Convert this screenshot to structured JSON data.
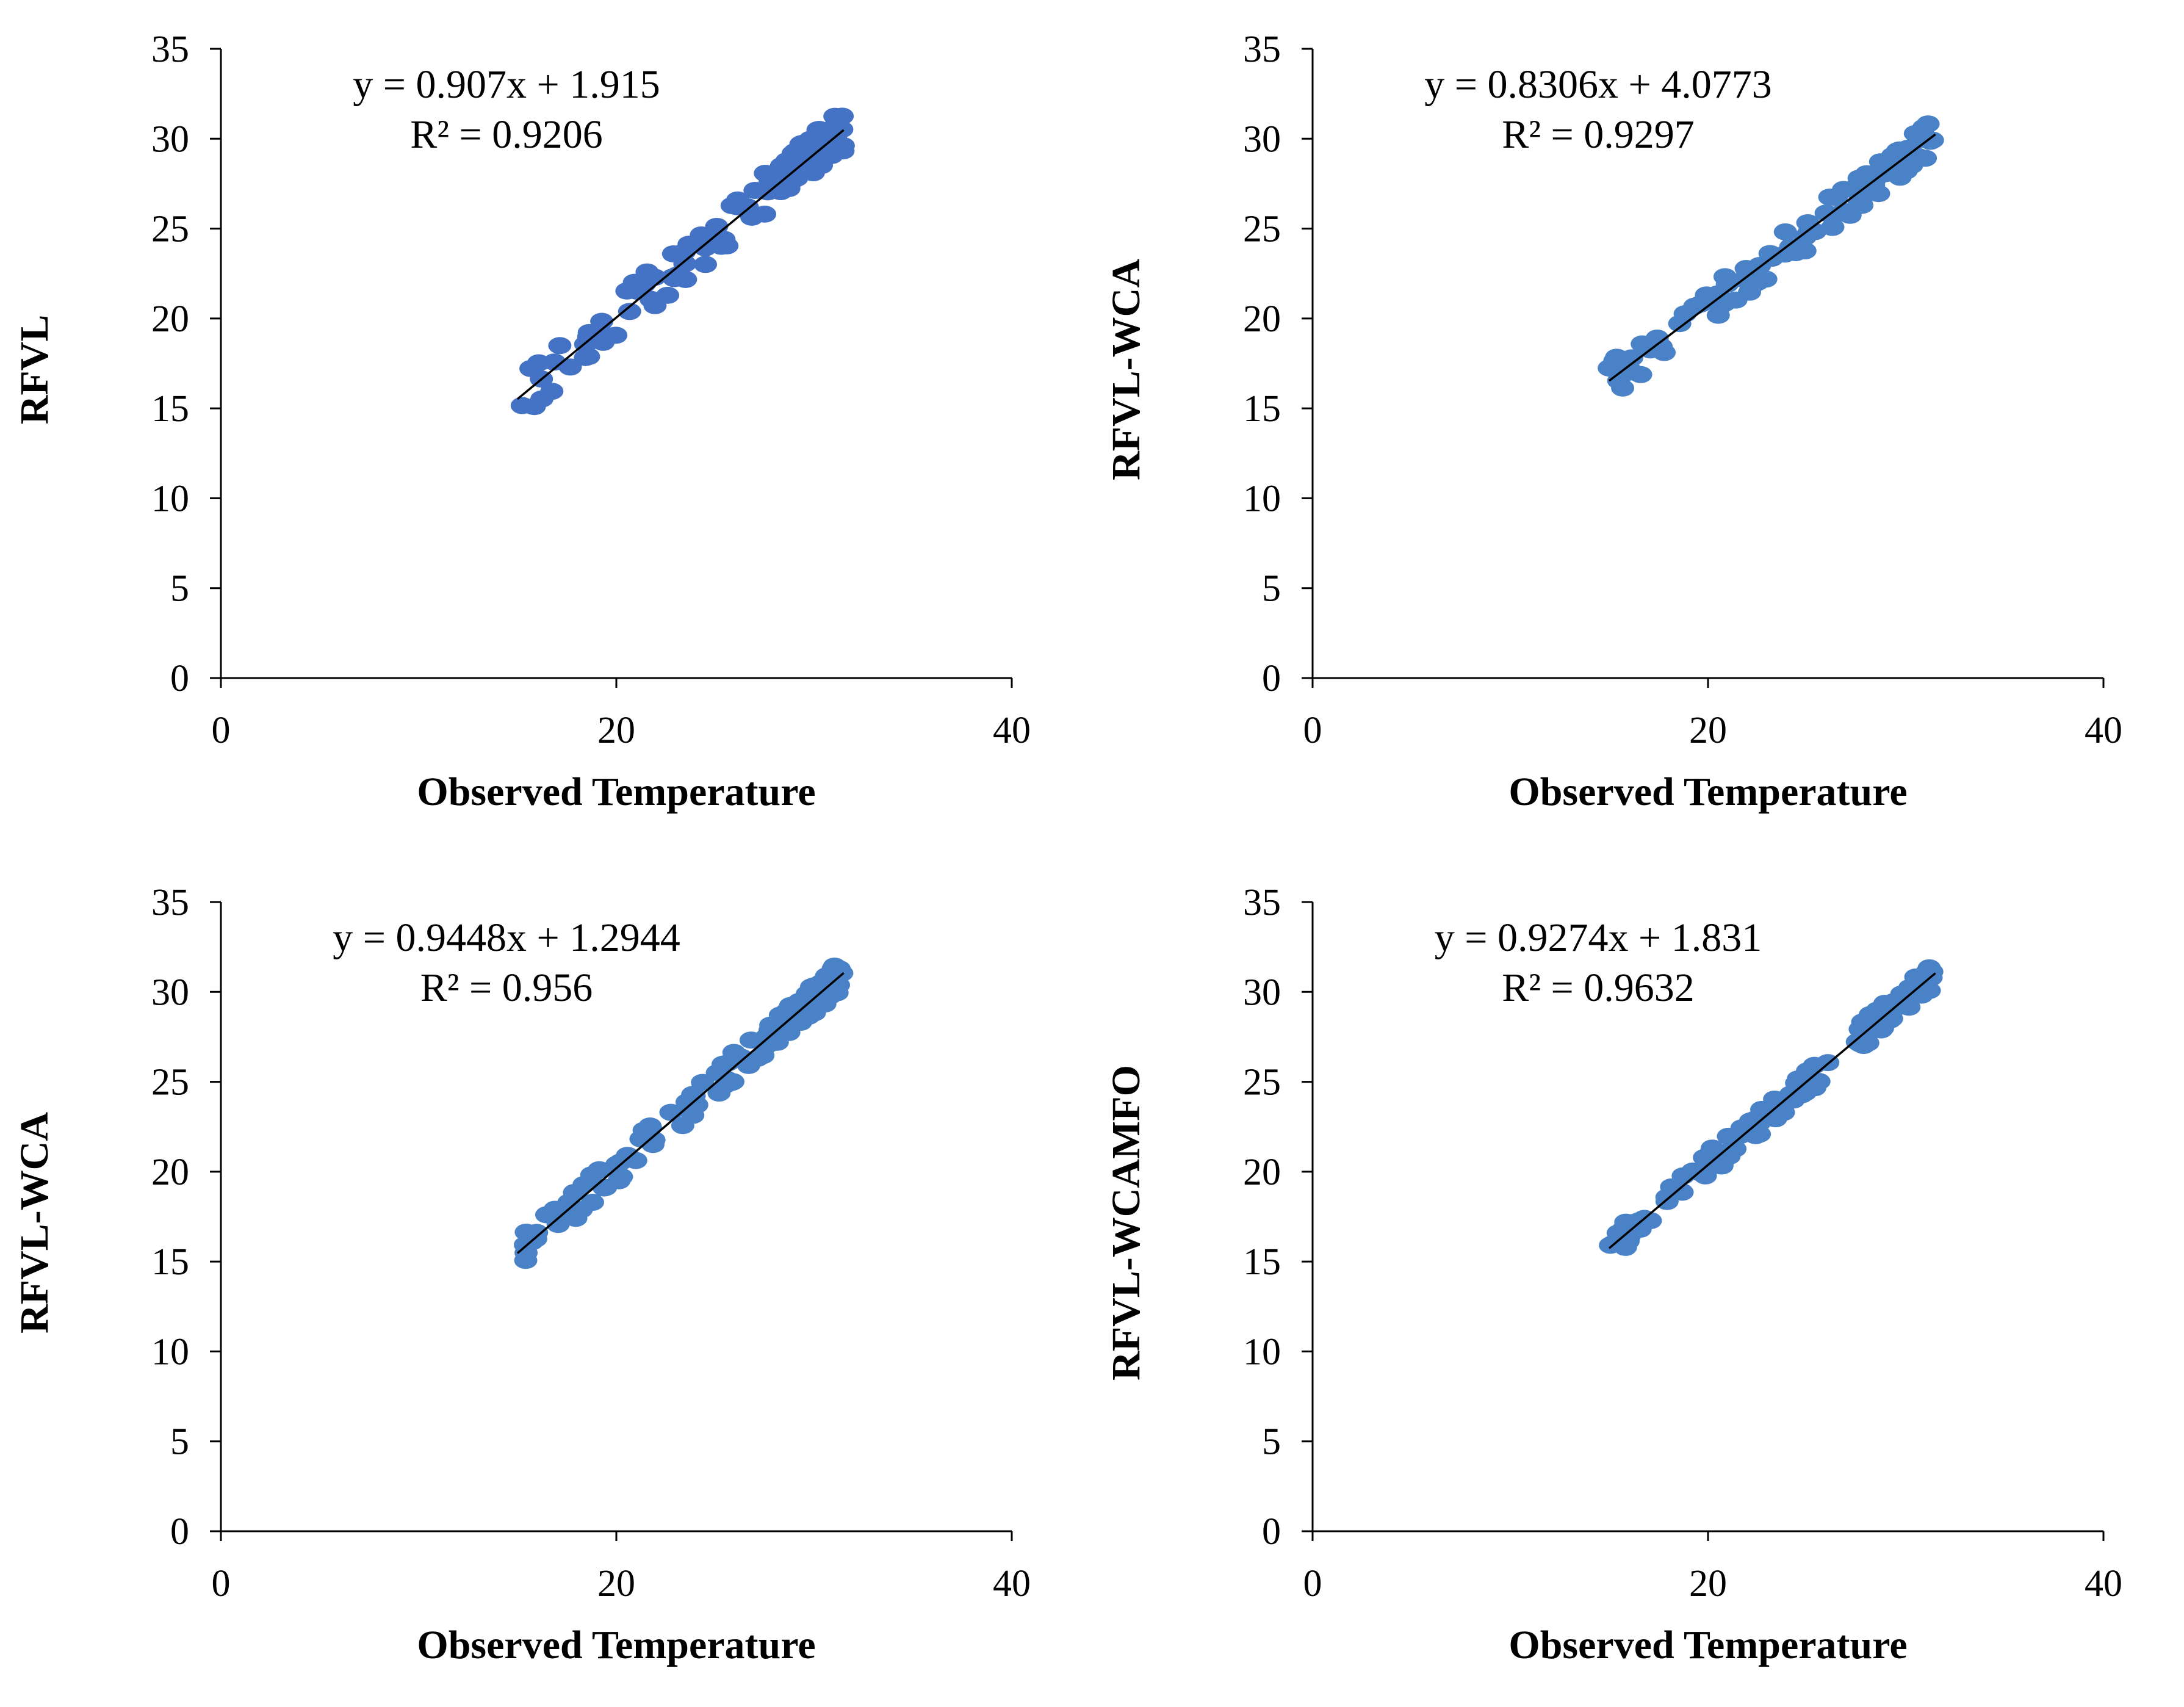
{
  "chart_data": [
    {
      "type": "scatter",
      "xlabel": "Observed Temperature",
      "ylabel": "RFVL",
      "xlim": [
        0,
        40
      ],
      "ylim": [
        0,
        35
      ],
      "xticks": [
        "0",
        "20",
        "40"
      ],
      "yticks": [
        "0",
        "5",
        "10",
        "15",
        "20",
        "25",
        "30",
        "35"
      ],
      "equation": "y = 0.907x + 1.915",
      "r_squared": "R² = 0.9206",
      "trendline": {
        "slope": 0.907,
        "intercept": 1.915,
        "x_range": [
          15,
          31.5
        ]
      },
      "point_color": "#4472C4",
      "seed": 11,
      "noise": 1.2
    },
    {
      "type": "scatter",
      "xlabel": "Observed Temperature",
      "ylabel": "RFVL-WCA",
      "xlim": [
        0,
        40
      ],
      "ylim": [
        0,
        35
      ],
      "xticks": [
        "0",
        "20",
        "40"
      ],
      "yticks": [
        "0",
        "5",
        "10",
        "15",
        "20",
        "25",
        "30",
        "35"
      ],
      "equation": "y = 0.8306x + 4.0773",
      "r_squared": "R² = 0.9297",
      "trendline": {
        "slope": 0.8306,
        "intercept": 4.0773,
        "x_range": [
          15,
          31.5
        ]
      },
      "point_color": "#4A82C8",
      "seed": 23,
      "noise": 1.0
    },
    {
      "type": "scatter",
      "xlabel": "Observed Temperature",
      "ylabel": "RFVL-WCA",
      "xlim": [
        0,
        40
      ],
      "ylim": [
        0,
        35
      ],
      "xticks": [
        "0",
        "20",
        "40"
      ],
      "yticks": [
        "0",
        "5",
        "10",
        "15",
        "20",
        "25",
        "30",
        "35"
      ],
      "equation": "y = 0.9448x + 1.2944",
      "r_squared": "R² = 0.956",
      "trendline": {
        "slope": 0.9448,
        "intercept": 1.2944,
        "x_range": [
          15,
          31.5
        ]
      },
      "point_color": "#4A82C8",
      "seed": 37,
      "noise": 0.85
    },
    {
      "type": "scatter",
      "xlabel": "Observed Temperature",
      "ylabel": "RFVL-WCAMFO",
      "xlim": [
        0,
        40
      ],
      "ylim": [
        0,
        35
      ],
      "xticks": [
        "0",
        "20",
        "40"
      ],
      "yticks": [
        "0",
        "5",
        "10",
        "15",
        "20",
        "25",
        "30",
        "35"
      ],
      "equation": "y = 0.9274x + 1.831",
      "r_squared": "R² = 0.9632",
      "trendline": {
        "slope": 0.9274,
        "intercept": 1.831,
        "x_range": [
          15,
          31.5
        ]
      },
      "point_color": "#4A82C8",
      "seed": 53,
      "noise": 0.75
    }
  ]
}
